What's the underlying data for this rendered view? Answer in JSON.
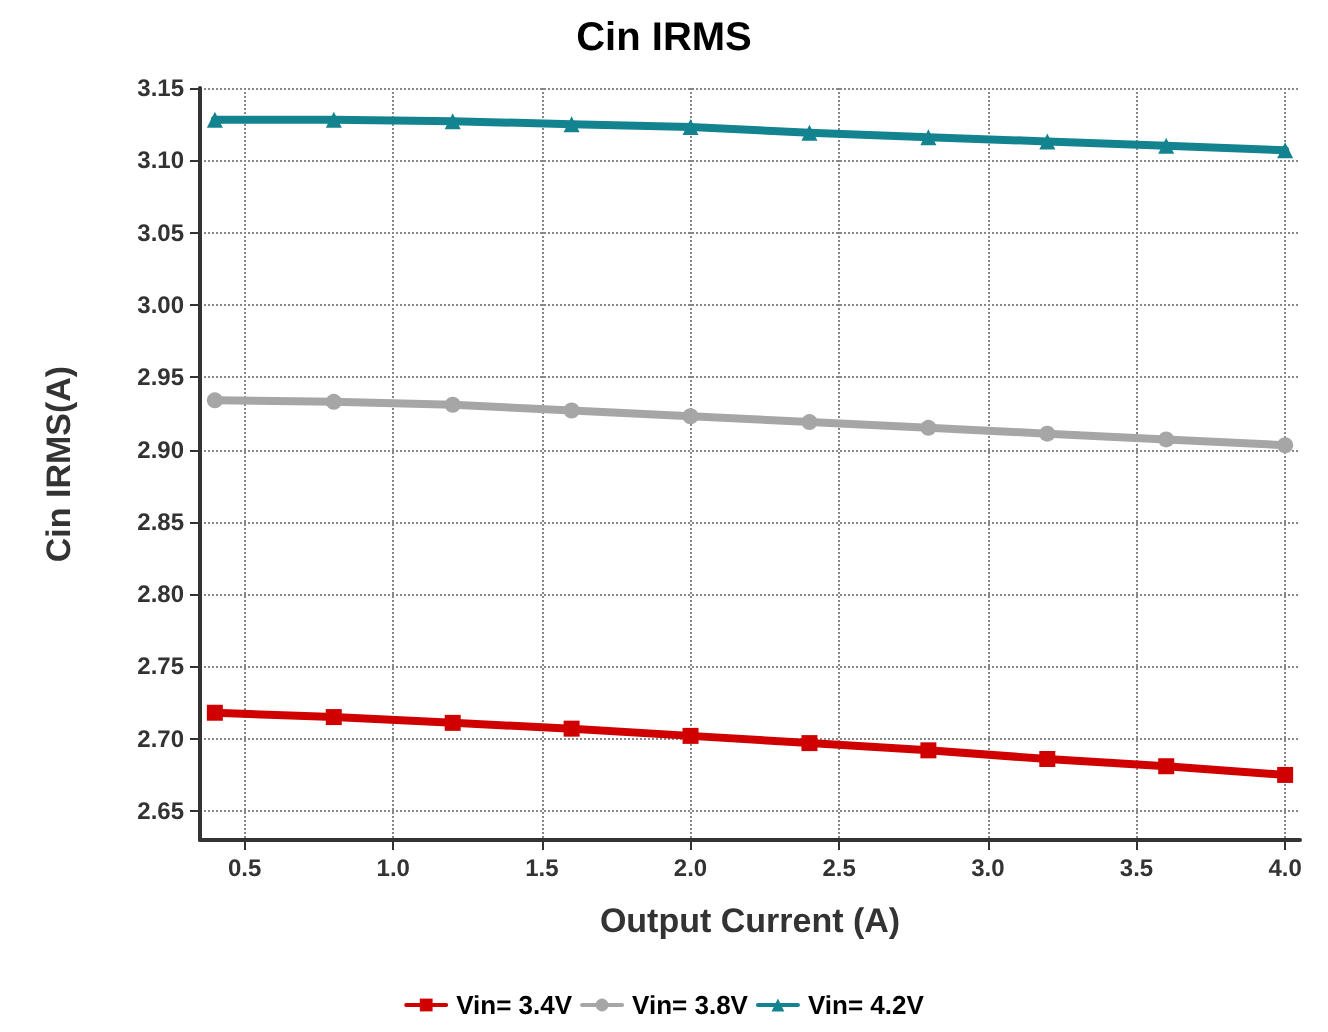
{
  "chart_data": {
    "type": "line",
    "title": "Cin IRMS",
    "xlabel": "Output Current (A)",
    "ylabel": "Cin IRMS(A)",
    "x": [
      0.4,
      0.8,
      1.2,
      1.6,
      2.0,
      2.4,
      2.8,
      3.2,
      3.6,
      4.0
    ],
    "series": [
      {
        "name": "Vin= 3.4V",
        "color": "#d00000",
        "marker": "square",
        "values": [
          2.718,
          2.715,
          2.711,
          2.707,
          2.702,
          2.697,
          2.692,
          2.686,
          2.681,
          2.675
        ]
      },
      {
        "name": "Vin= 3.8V",
        "color": "#a6a6a6",
        "marker": "circle",
        "values": [
          2.934,
          2.933,
          2.931,
          2.927,
          2.923,
          2.919,
          2.915,
          2.911,
          2.907,
          2.903
        ]
      },
      {
        "name": "Vin= 4.2V",
        "color": "#13848f",
        "marker": "triangle",
        "values": [
          3.128,
          3.128,
          3.127,
          3.125,
          3.123,
          3.119,
          3.116,
          3.113,
          3.11,
          3.107
        ]
      }
    ],
    "xlim": [
      0.35,
      4.05
    ],
    "xticks": [
      {
        "value": 0.5,
        "label": "0.5"
      },
      {
        "value": 1,
        "label": "1.0"
      },
      {
        "value": 1.5,
        "label": "1.5"
      },
      {
        "value": 2,
        "label": "2.0"
      },
      {
        "value": 2.5,
        "label": "2.5"
      },
      {
        "value": 3,
        "label": "3.0"
      },
      {
        "value": 3.5,
        "label": "3.5"
      },
      {
        "value": 4,
        "label": "4.0"
      }
    ],
    "ylim": [
      2.63,
      3.15
    ],
    "yticks": [
      {
        "value": 2.65,
        "label": "2.65"
      },
      {
        "value": 2.7,
        "label": "2.70"
      },
      {
        "value": 2.75,
        "label": "2.75"
      },
      {
        "value": 2.8,
        "label": "2.80"
      },
      {
        "value": 2.85,
        "label": "2.85"
      },
      {
        "value": 2.9,
        "label": "2.90"
      },
      {
        "value": 2.95,
        "label": "2.95"
      },
      {
        "value": 3,
        "label": "3.00"
      },
      {
        "value": 3.05,
        "label": "3.05"
      },
      {
        "value": 3.1,
        "label": "3.10"
      },
      {
        "value": 3.15,
        "label": "3.15"
      }
    ],
    "grid": true,
    "legend": "bottom",
    "line_style": "solid"
  }
}
